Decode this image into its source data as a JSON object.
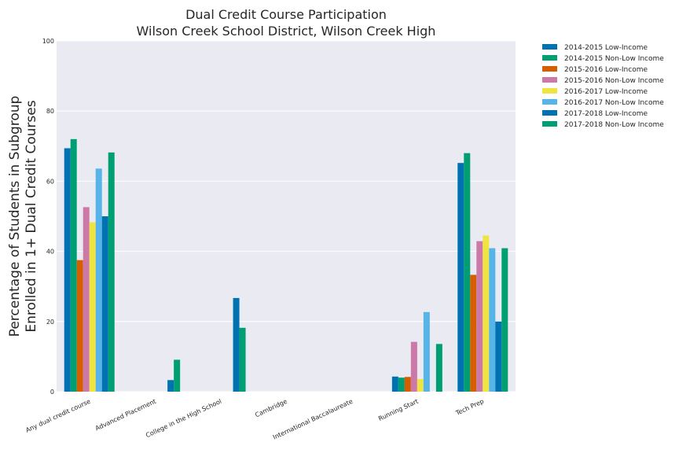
{
  "chart_data": {
    "type": "bar",
    "title": [
      "Dual Credit Course Participation",
      "Wilson Creek School District, Wilson Creek High"
    ],
    "xlabel": "",
    "ylabel": [
      "Percentage of Students in Subgroup",
      "Enrolled in 1+ Dual Credit Courses"
    ],
    "ylim": [
      0,
      100
    ],
    "yticks": [
      "0",
      "20",
      "40",
      "60",
      "80",
      "100"
    ],
    "grid": true,
    "legend_position": "outside-top-right",
    "categories": [
      "Any dual credit course",
      "Advanced Placement",
      "College in the High School",
      "Cambridge",
      "International Baccalaureate",
      "Running Start",
      "Tech Prep"
    ],
    "series": [
      {
        "name": "2014-2015 Low-Income",
        "color": "#0072B2",
        "values": [
          69.4,
          null,
          null,
          null,
          null,
          4.3,
          65.2
        ]
      },
      {
        "name": "2014-2015 Non-Low Income",
        "color": "#009E73",
        "values": [
          72.0,
          null,
          null,
          null,
          null,
          4.0,
          68.0
        ]
      },
      {
        "name": "2015-2016 Low-Income",
        "color": "#D55E00",
        "values": [
          37.5,
          null,
          null,
          null,
          null,
          4.2,
          33.3
        ]
      },
      {
        "name": "2015-2016 Non-Low Income",
        "color": "#CC79A7",
        "values": [
          52.6,
          null,
          null,
          null,
          null,
          14.2,
          42.9
        ]
      },
      {
        "name": "2016-2017 Low-Income",
        "color": "#F0E442",
        "values": [
          48.3,
          null,
          null,
          null,
          null,
          3.6,
          44.5
        ]
      },
      {
        "name": "2016-2017 Non-Low Income",
        "color": "#56B4E9",
        "values": [
          63.6,
          null,
          null,
          null,
          null,
          22.7,
          40.9
        ]
      },
      {
        "name": "2017-2018 Low-Income",
        "color": "#0072B2",
        "values": [
          50.0,
          3.3,
          26.7,
          null,
          null,
          null,
          20.0
        ]
      },
      {
        "name": "2017-2018 Non-Low Income",
        "color": "#009E73",
        "values": [
          68.2,
          9.1,
          18.2,
          null,
          null,
          13.6,
          40.9
        ]
      }
    ]
  }
}
